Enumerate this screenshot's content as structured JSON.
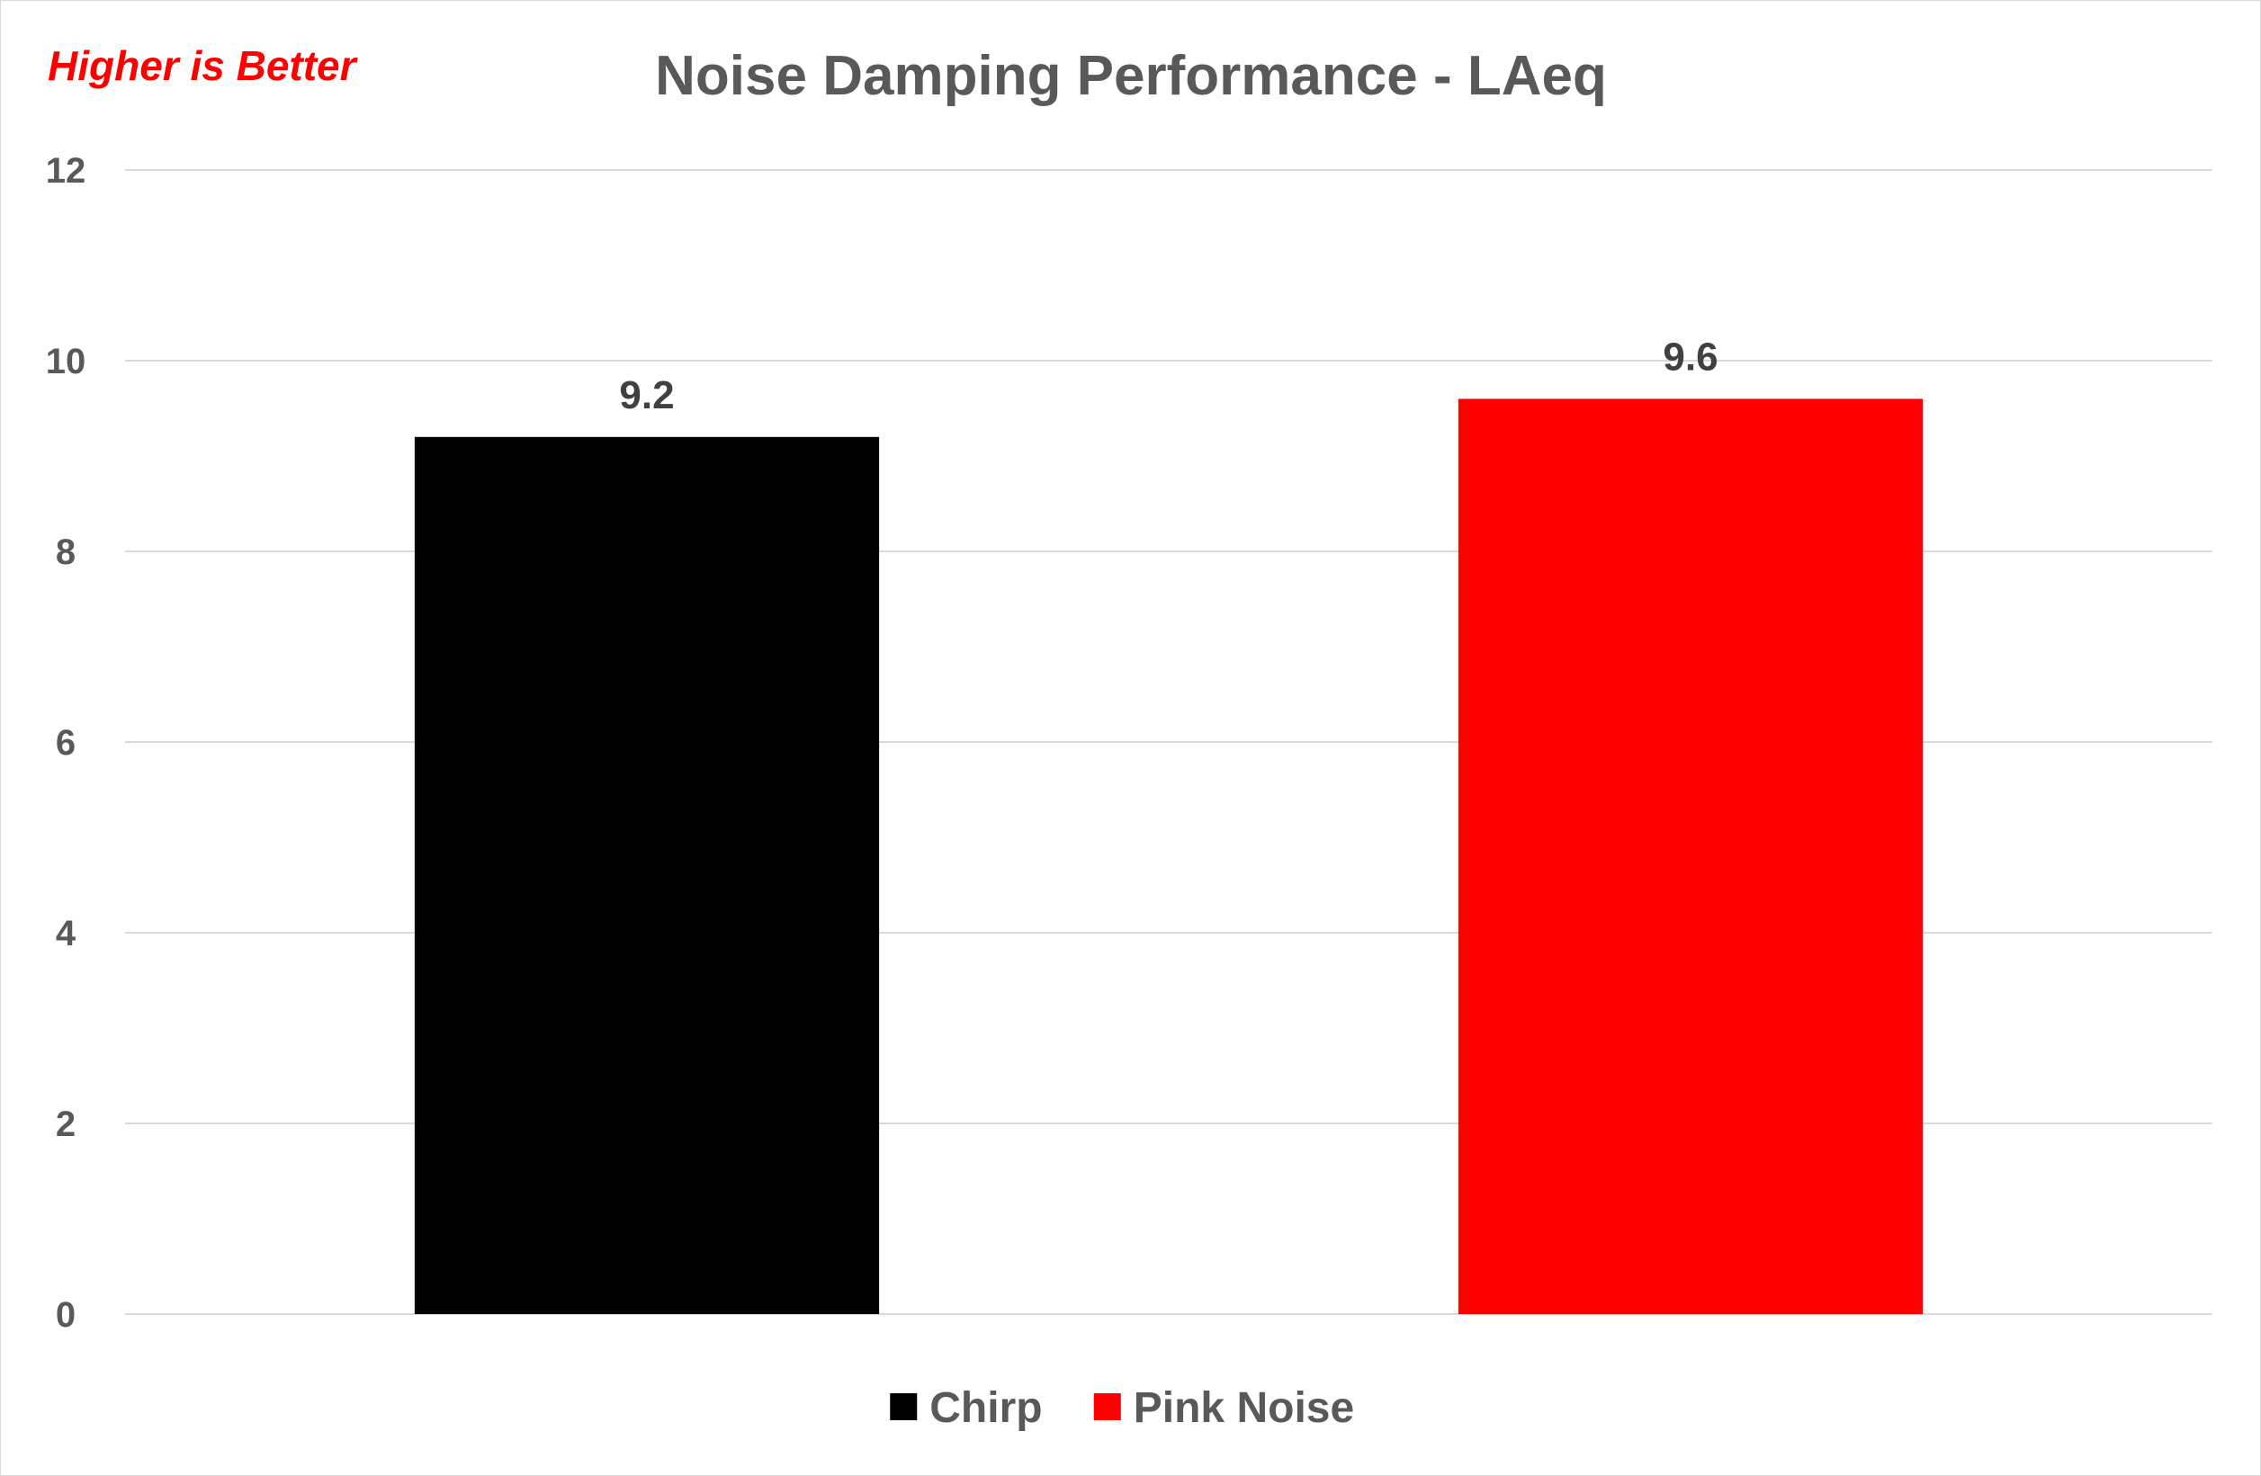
{
  "chart_data": {
    "type": "bar",
    "title": "Noise Damping Performance - LAeq",
    "annotation": "Higher is Better",
    "xlabel": "",
    "ylabel": "",
    "ylim": [
      0,
      12
    ],
    "yticks": [
      0,
      2,
      4,
      6,
      8,
      10,
      12
    ],
    "grid": true,
    "legend_position": "bottom",
    "categories": [
      "Chirp",
      "Pink Noise"
    ],
    "values": [
      9.2,
      9.6
    ],
    "data_labels": [
      "9.2",
      "9.6"
    ],
    "series": [
      {
        "name": "Chirp",
        "value": 9.2,
        "color": "#000000"
      },
      {
        "name": "Pink Noise",
        "value": 9.6,
        "color": "#ff0000"
      }
    ],
    "colors": {
      "gridline": "#d9d9d9",
      "text": "#595959",
      "data_label": "#404040",
      "annotation": "#ff0000"
    }
  }
}
